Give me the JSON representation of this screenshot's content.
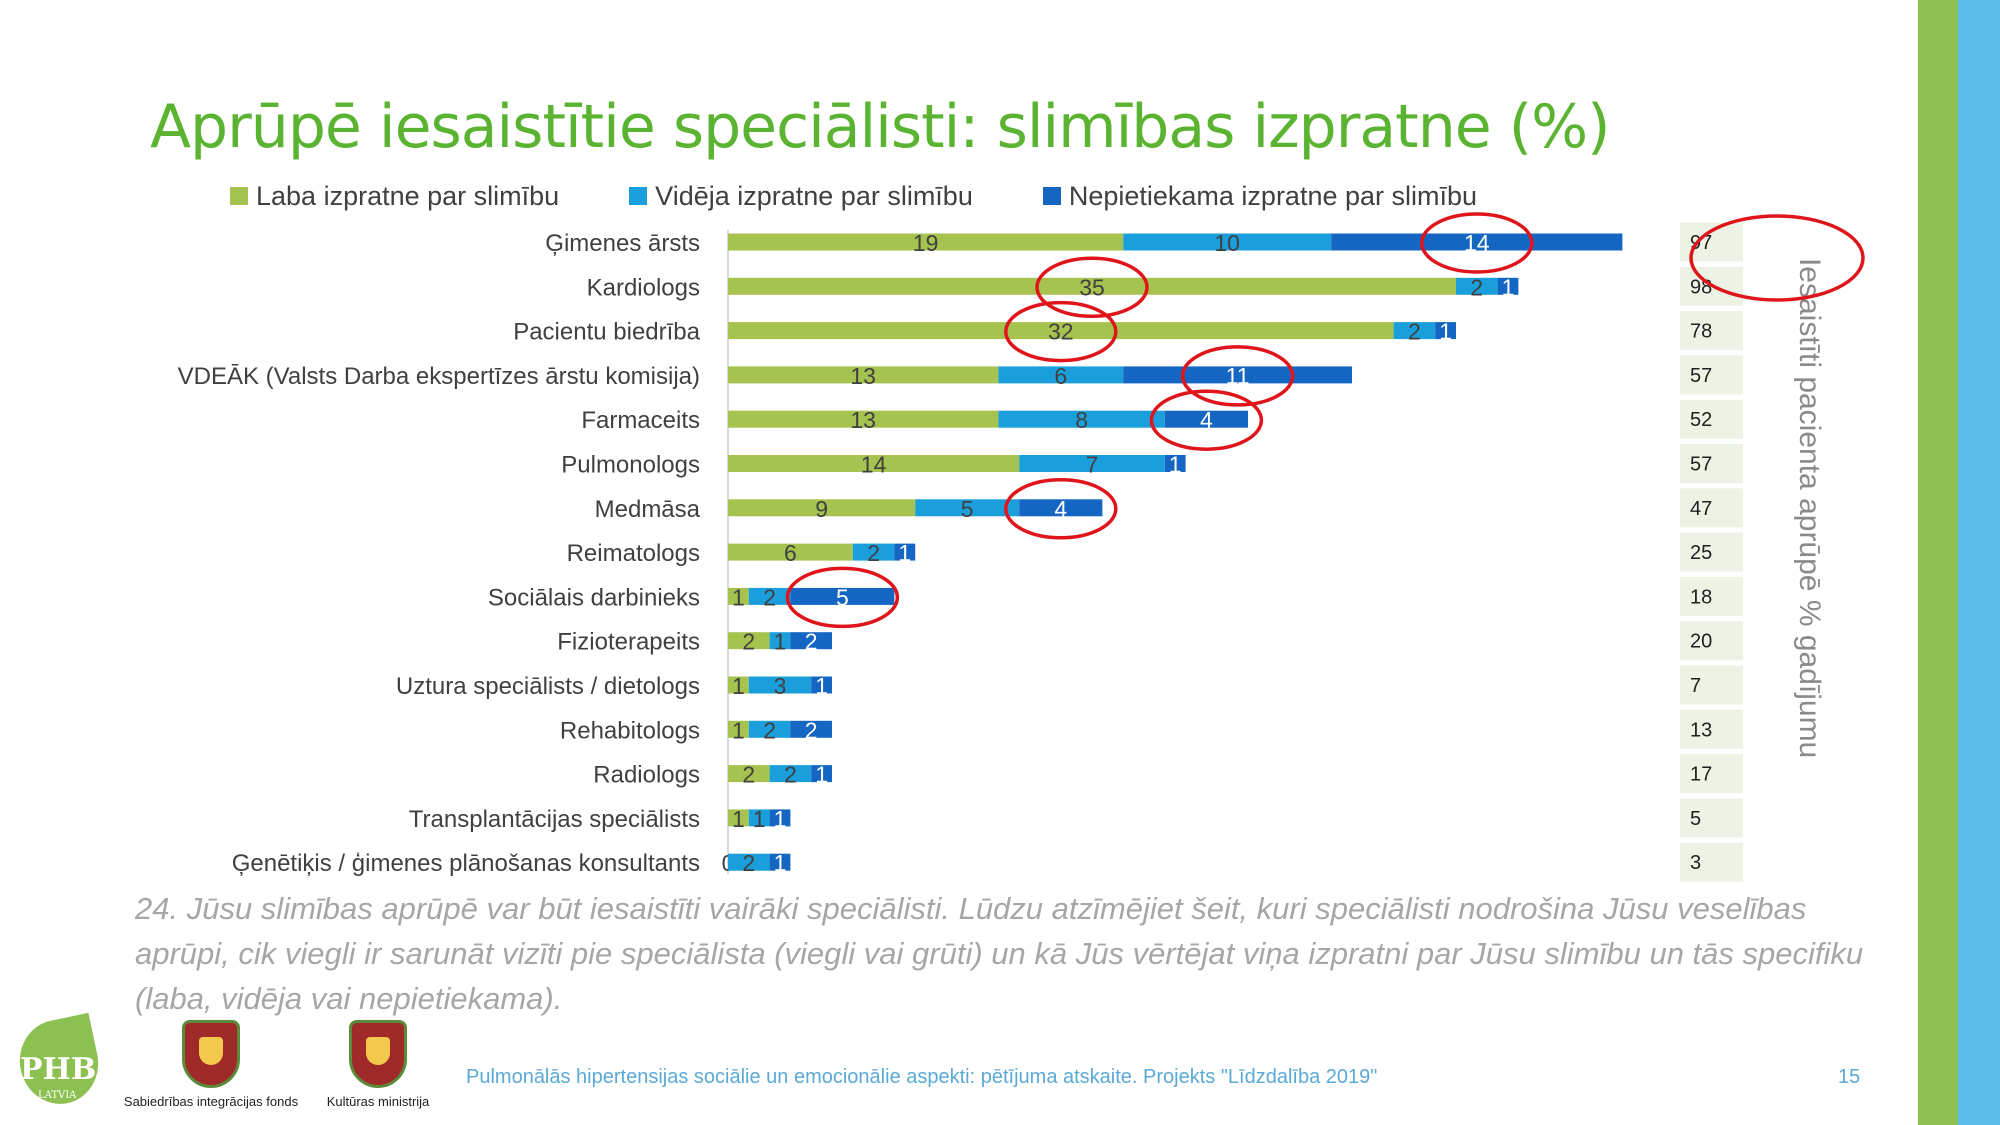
{
  "title": "Aprūpē iesaistītie speciālisti: slimības izpratne (%)",
  "legend": [
    {
      "label": "Laba izpratne par slimību",
      "color": "#a6c34f"
    },
    {
      "label": "Vidēja izpratne par slimību",
      "color": "#1a9fdc"
    },
    {
      "label": "Nepietiekama izpratne par slimību",
      "color": "#1466c2"
    }
  ],
  "chart_data": {
    "type": "bar",
    "orientation": "horizontal",
    "stacked": true,
    "categories": [
      "Ģimenes ārsts",
      "Kardiologs",
      "Pacientu biedrība",
      "VDEĀK (Valsts Darba ekspertīzes ārstu komisija)",
      "Farmaceits",
      "Pulmonologs",
      "Medmāsa",
      "Reimatologs",
      "Sociālais darbinieks",
      "Fizioterapeits",
      "Uztura speciālists / dietologs",
      "Rehabitologs",
      "Radiologs",
      "Transplantācijas speciālists",
      "Ģenētiķis / ģimenes plānošanas konsultants"
    ],
    "series": [
      {
        "name": "Laba izpratne par slimību",
        "color": "#a6c34f",
        "values": [
          19,
          35,
          32,
          13,
          13,
          14,
          9,
          6,
          1,
          2,
          1,
          1,
          2,
          1,
          0
        ]
      },
      {
        "name": "Vidēja izpratne par slimību",
        "color": "#1a9fdc",
        "values": [
          10,
          2,
          2,
          6,
          8,
          7,
          5,
          2,
          2,
          1,
          3,
          2,
          2,
          1,
          2
        ]
      },
      {
        "name": "Nepietiekama izpratne par slimību",
        "color": "#1466c2",
        "values": [
          14,
          1,
          1,
          11,
          4,
          1,
          4,
          1,
          5,
          2,
          1,
          2,
          1,
          1,
          1
        ]
      }
    ],
    "xlim": [
      0,
      43
    ],
    "legend_position": "top",
    "grid": false,
    "data_labels": true,
    "side_table": {
      "label": "Iesaistīti pacienta aprūpē % gadījumu",
      "values": [
        97,
        98,
        78,
        57,
        52,
        57,
        47,
        25,
        18,
        20,
        7,
        13,
        17,
        5,
        3
      ]
    },
    "highlights": [
      {
        "category": "Ģimenes ārsts",
        "series": "Nepietiekama izpratne par slimību"
      },
      {
        "category": "Ģimenes ārsts",
        "series": "side_table"
      },
      {
        "category": "Kardiologs",
        "series": "Laba izpratne par slimību"
      },
      {
        "category": "Pacientu biedrība",
        "series": "Laba izpratne par slimību"
      },
      {
        "category": "VDEĀK (Valsts Darba ekspertīzes ārstu komisija)",
        "series": "Nepietiekama izpratne par slimību"
      },
      {
        "category": "Farmaceits",
        "series": "Nepietiekama izpratne par slimību"
      },
      {
        "category": "Medmāsa",
        "series": "Nepietiekama izpratne par slimību"
      },
      {
        "category": "Sociālais darbinieks",
        "series": "Nepietiekama izpratne par slimību"
      }
    ],
    "highlight_color": "#e0151b"
  },
  "caption": "24. Jūsu slimības aprūpē var būt iesaistīti vairāki speciālisti. Lūdzu atzīmējiet šeit, kuri speciālisti nodrošina Jūsu veselības aprūpi, cik viegli ir sarunāt vizīti pie speciālista (viegli vai grūti) un kā Jūs vērtējat viņa izpratni par Jūsu slimību un tās specifiku (laba, vidēja vai nepietiekama).",
  "footer": {
    "text": "Pulmonālās hipertensijas sociālie un emocionālie aspekti: pētījuma atskaite. Projekts \"Līdzdalība 2019\"",
    "page_number": "15"
  },
  "logos": {
    "phb": "PHB",
    "phb_sub": "LATVIA",
    "sif": "Sabiedrības integrācijas fonds",
    "km": "Kultūras ministrija"
  },
  "colors": {
    "title": "#5bb431",
    "side_bar_green": "#8cc152",
    "side_bar_blue": "#5cbdec",
    "footer": "#5aa9d6"
  }
}
